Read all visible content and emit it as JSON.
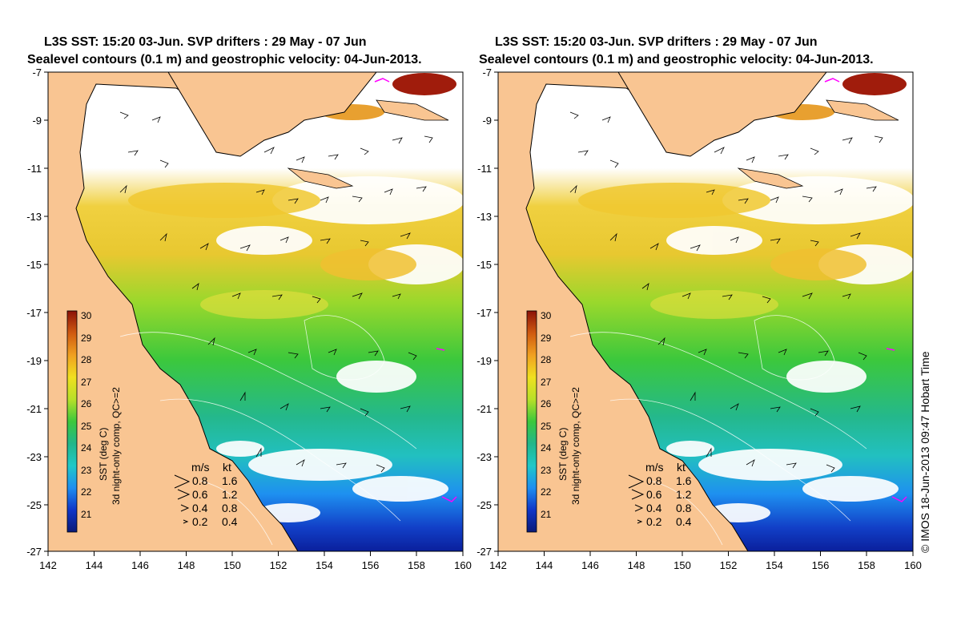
{
  "panels": [
    {
      "title_line1": "L3S SST: 15:20 03-Jun. SVP drifters : 29 May - 07 Jun",
      "title_line2": "Sealevel contours (0.1 m) and geostrophic velocity: 04-Jun-2013."
    },
    {
      "title_line1": "L3S SST: 15:20 03-Jun. SVP drifters : 29 May - 07 Jun",
      "title_line2": "Sealevel contours (0.1 m) and geostrophic velocity: 04-Jun-2013."
    }
  ],
  "axes": {
    "lon_ticks": [
      "142",
      "144",
      "146",
      "148",
      "150",
      "152",
      "154",
      "156",
      "158",
      "160"
    ],
    "lat_ticks": [
      "-7",
      "-9",
      "-11",
      "-13",
      "-15",
      "-17",
      "-19",
      "-21",
      "-23",
      "-25",
      "-27"
    ],
    "lon_range": [
      142,
      160
    ],
    "lat_range": [
      -27,
      -7
    ]
  },
  "colorbar": {
    "label_line1": "SST (deg C)",
    "label_line2": "3d night-only comp, QC>=2",
    "ticks": [
      "30",
      "29",
      "28",
      "27",
      "26",
      "25",
      "24",
      "23",
      "22",
      "21"
    ],
    "range": [
      20,
      30
    ]
  },
  "velocity_legend": {
    "header_ms": "m/s",
    "header_kt": "kt",
    "rows": [
      {
        "ms": "0.8",
        "kt": "1.6"
      },
      {
        "ms": "0.6",
        "kt": "1.2"
      },
      {
        "ms": "0.4",
        "kt": "0.8"
      },
      {
        "ms": "0.2",
        "kt": "0.4"
      }
    ]
  },
  "credit": "© IMOS 18-Jun-2013 09:47 Hobart Time",
  "colors": {
    "land": "#f9c592",
    "no_data": "#ffffff",
    "coastline": "#000000"
  },
  "icons": {
    "velocity_arrow": "chevron-arrow-icon",
    "drifter_track": "magenta-track"
  }
}
